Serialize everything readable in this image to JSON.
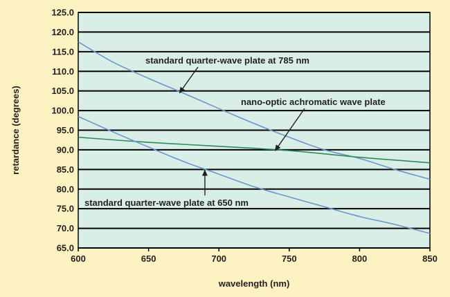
{
  "chart_data": {
    "type": "line",
    "title": "",
    "xlabel": "wavelength (nm)",
    "ylabel": "retardance (degrees)",
    "xlim": [
      600,
      850
    ],
    "ylim": [
      65,
      125
    ],
    "x_ticks": [
      "600",
      "650",
      "700",
      "750",
      "800",
      "850"
    ],
    "y_ticks": [
      "65.0",
      "70.0",
      "75.0",
      "80.0",
      "85.0",
      "90.0",
      "95.0",
      "100.0",
      "105.0",
      "110.0",
      "115.0",
      "120.0",
      "125.0"
    ],
    "grid": "horizontal",
    "series": [
      {
        "x": [
          600,
          625,
          650,
          675,
          700,
          725,
          750,
          775,
          800,
          825,
          850
        ],
        "values": [
          117.5,
          112.3,
          108.2,
          104.4,
          100.5,
          96.7,
          93.2,
          90.0,
          87.8,
          85.0,
          82.5
        ],
        "color": "#6f95cf"
      },
      {
        "x": [
          600,
          650,
          700,
          750,
          800,
          850
        ],
        "values": [
          93.2,
          91.9,
          90.9,
          89.8,
          88.1,
          86.7
        ],
        "color": "#2e8b57"
      },
      {
        "x": [
          600,
          625,
          650,
          675,
          700,
          725,
          750,
          775,
          800,
          825,
          850
        ],
        "values": [
          98.5,
          94.5,
          90.7,
          87.0,
          83.8,
          80.6,
          78.0,
          75.5,
          73.0,
          71.0,
          68.7
        ],
        "color": "#6f95cf"
      }
    ],
    "annotations": [
      {
        "text": "standard quarter-wave plate at 785 nm",
        "arrow_to": [
          672,
          104.5
        ]
      },
      {
        "text": "nano-optic achromatic wave plate",
        "arrow_to": [
          740,
          89.8
        ]
      },
      {
        "text": "standard quarter-wave plate at 650 nm",
        "arrow_to": [
          690,
          84.8
        ]
      }
    ],
    "colors": {
      "background": "#fdf3c2",
      "plot_background": "#d9eee6",
      "gridline": "#000000",
      "text": "#231f20"
    }
  }
}
